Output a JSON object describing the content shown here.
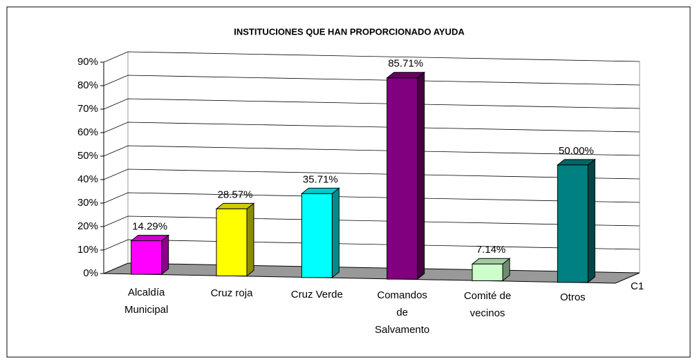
{
  "chart_data": {
    "type": "bar3d",
    "title": "INSTITUCIONES QUE HAN PROPORCIONADO AYUDA",
    "categories": [
      "Alcaldía\nMunicipal",
      "Cruz roja",
      "Cruz Verde",
      "Comandos\nde\nSalvamento",
      "Comité de\nvecinos",
      "Otros"
    ],
    "series": [
      {
        "name": "C1",
        "colors": [
          "#ff00ff",
          "#ffff00",
          "#00ffff",
          "#800080",
          "#ccffcc",
          "#008080"
        ],
        "values": [
          14.29,
          28.57,
          35.71,
          85.71,
          7.14,
          50.0
        ],
        "value_labels": [
          "14.29%",
          "28.57%",
          "35.71%",
          "85.71%",
          "7.14%",
          "50.00%"
        ]
      }
    ],
    "ylim": [
      0,
      90
    ],
    "yticks": [
      {
        "value": 0,
        "label": "0%"
      },
      {
        "value": 10,
        "label": "10%"
      },
      {
        "value": 20,
        "label": "20%"
      },
      {
        "value": 30,
        "label": "30%"
      },
      {
        "value": 40,
        "label": "40%"
      },
      {
        "value": 50,
        "label": "50%"
      },
      {
        "value": 60,
        "label": "60%"
      },
      {
        "value": 70,
        "label": "70%"
      },
      {
        "value": 80,
        "label": "80%"
      },
      {
        "value": 90,
        "label": "90%"
      }
    ],
    "grid": true
  }
}
